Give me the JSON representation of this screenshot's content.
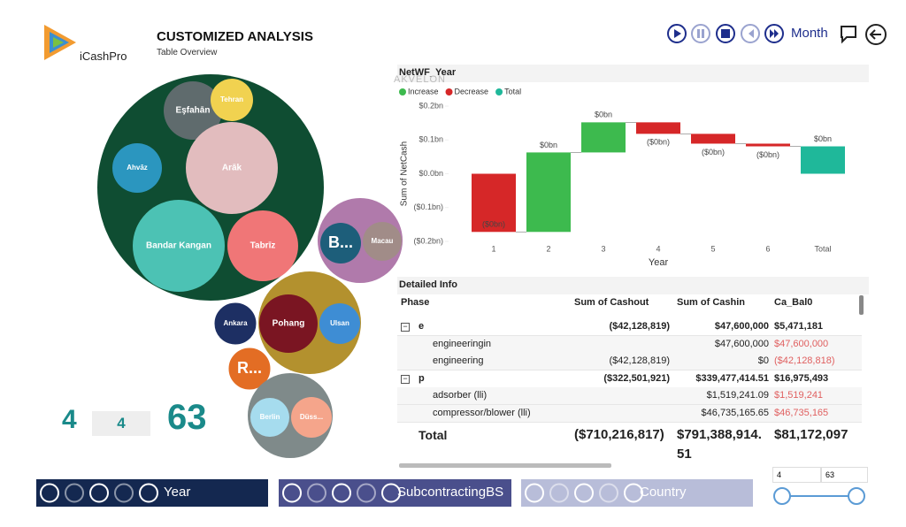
{
  "header": {
    "logo": "iCashPro",
    "title": "CUSTOMIZED ANALYSIS",
    "subtitle": "Table Overview",
    "period": "Month"
  },
  "bubbles": [
    {
      "label": null,
      "color": "#0f4d32"
    },
    {
      "label": "Eşfahān",
      "color": "#5f6b6d"
    },
    {
      "label": "Tehran",
      "color": "#f1d250"
    },
    {
      "label": "Ahvāz",
      "color": "#2b96bf"
    },
    {
      "label": "Arāk",
      "color": "#e2bcbe"
    },
    {
      "label": "Bandar Kangan",
      "color": "#4cc2b4"
    },
    {
      "label": "Tabrīz",
      "color": "#f07677"
    },
    {
      "label": null,
      "color": "#b07aab"
    },
    {
      "label": "B...",
      "color": "#1d5e7a"
    },
    {
      "label": "Macau",
      "color": "#a18c88"
    },
    {
      "label": null,
      "color": "#b3912e"
    },
    {
      "label": "Pohang",
      "color": "#7a1522"
    },
    {
      "label": "Ulsan",
      "color": "#3e8dd4"
    },
    {
      "label": "Ankara",
      "color": "#1d2f63"
    },
    {
      "label": "R...",
      "color": "#e36d24"
    },
    {
      "label": null,
      "color": "#7f8a8a"
    },
    {
      "label": "Berlin",
      "color": "#a6dcee"
    },
    {
      "label": "Düss...",
      "color": "#f5a58b"
    }
  ],
  "kpis": [
    "4",
    "4",
    "63"
  ],
  "chart_data": {
    "type": "waterfall",
    "title": "NetWF_Year",
    "watermark": "AKVELON",
    "xlabel": "Year",
    "ylabel": "Sum of NetCash",
    "categories": [
      "1",
      "2",
      "3",
      "4",
      "5",
      "6",
      "Total"
    ],
    "values": [
      -0.172,
      0.235,
      0.089,
      -0.034,
      -0.029,
      -0.008,
      0.081
    ],
    "value_labels": [
      "($0bn)",
      "$0bn",
      "$0bn",
      "($0bn)",
      "($0bn)",
      "($0bn)",
      "$0bn"
    ],
    "legend": [
      {
        "name": "Increase",
        "color": "#3dba4e"
      },
      {
        "name": "Decrease",
        "color": "#d62728"
      },
      {
        "name": "Total",
        "color": "#1fb89a"
      }
    ],
    "ylim": [
      -0.2,
      0.2
    ],
    "yticks": [
      {
        "value": 0.2,
        "label": "$0.2bn"
      },
      {
        "value": 0.1,
        "label": "$0.1bn"
      },
      {
        "value": 0,
        "label": "$0.0bn"
      },
      {
        "value": -0.1,
        "label": "($0.1bn)"
      },
      {
        "value": -0.2,
        "label": "($0.2bn)"
      }
    ]
  },
  "table": {
    "title": "Detailed Info",
    "columns": [
      "Phase",
      "Sum of Cashout",
      "Sum of Cashin",
      "Ca_Bal0"
    ],
    "rows": [
      [
        "e",
        "($42,128,819)",
        "$47,600,000",
        "$5,471,181"
      ],
      [
        "engineeringin",
        null,
        "$47,600,000",
        "$47,600,000"
      ],
      [
        "engineering",
        "($42,128,819)",
        "$0",
        "($42,128,818)"
      ],
      [
        "p",
        "($322,501,921)",
        "$339,477,414.51",
        "$16,975,493"
      ],
      [
        "adsorber (lli)",
        null,
        "$1,519,241.09",
        "$1,519,241"
      ],
      [
        "compressor/blower (lli)",
        null,
        "$46,735,165.65",
        "$46,735,165"
      ]
    ],
    "total": [
      "Total",
      "($710,216,817)",
      "$791,388,914.51",
      "$81,172,097"
    ]
  },
  "players": [
    "Year",
    "SubcontractingBS",
    "Country"
  ],
  "slider": [
    "4",
    "63"
  ]
}
